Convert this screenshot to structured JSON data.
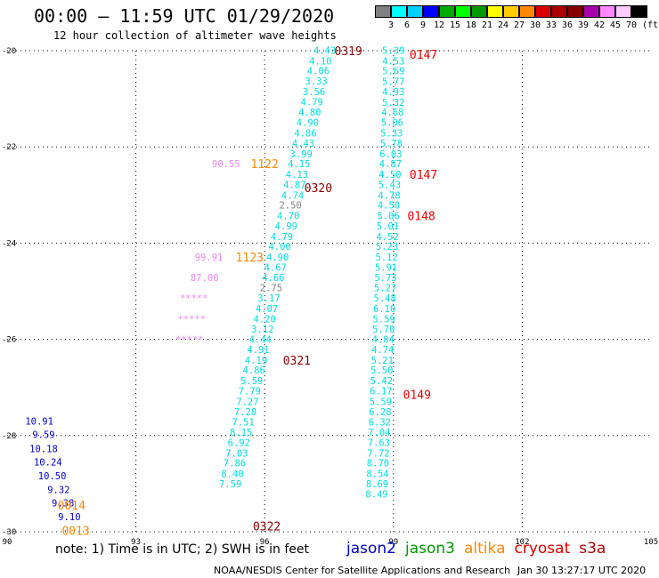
{
  "header": {
    "title": "00:00 – 11:59 UTC 01/29/2020",
    "subtitle": "12 hour collection of altimeter wave heights"
  },
  "colorbar": {
    "unit": "(ft)",
    "colors": [
      "#808080",
      "#00ffff",
      "#00d0ff",
      "#0000ff",
      "#00aa00",
      "#00ff00",
      "#009900",
      "#ffff00",
      "#ffcc00",
      "#ff8800",
      "#dd0000",
      "#aa0000",
      "#880000",
      "#aa00aa",
      "#ff88ff",
      "#ffccff",
      "#000000"
    ],
    "labels": [
      "3",
      "6",
      "9",
      "12",
      "15",
      "18",
      "21",
      "24",
      "27",
      "30",
      "33",
      "36",
      "39",
      "42",
      "45",
      "70"
    ]
  },
  "footer": {
    "note": "note: 1) Time is in UTC; 2) SWH is in feet",
    "credit": "NOAA/NESDIS Center for Satellite Applications and Research",
    "timestamp": "Jan 30 13:27:17 UTC 2020"
  },
  "legend": [
    {
      "name": "jason2",
      "color": "#0000cc"
    },
    {
      "name": "jason3",
      "color": "#009900"
    },
    {
      "name": "altika",
      "color": "#ff8800"
    },
    {
      "name": "cryosat",
      "color": "#dd0000"
    },
    {
      "name": "s3a",
      "color": "#aa0000"
    }
  ],
  "chart_data": {
    "type": "scatter",
    "title": "00:00 – 11:59 UTC 01/29/2020",
    "subtitle": "12 hour collection of altimeter wave heights",
    "xlabel": "",
    "ylabel": "",
    "xlim": [
      90,
      105
    ],
    "ylim": [
      -30,
      -20
    ],
    "xticks": [
      90,
      93,
      96,
      99,
      102,
      105
    ],
    "yticks": [
      -20,
      -22,
      -24,
      -26,
      -28,
      -30
    ],
    "xtick_labels": [
      "90",
      "93",
      "96",
      "99",
      "102",
      "105"
    ],
    "ytick_labels": [
      "-20",
      "-22",
      "-24",
      "-26",
      "-28",
      "-30"
    ],
    "grid": true,
    "colors": {
      "cyan": "#00dddd",
      "blue": "#0000cc",
      "gray": "#808080",
      "pink": "#ee88ee",
      "orange": "#ff8800",
      "red": "#ee0000",
      "darkred": "#880000"
    },
    "points": [
      {
        "x": 97.4,
        "y": -19.99,
        "label": "4.43",
        "color": "cyan"
      },
      {
        "x": 97.3,
        "y": -20.21,
        "label": "4.10",
        "color": "cyan"
      },
      {
        "x": 97.25,
        "y": -20.42,
        "label": "4.06",
        "color": "cyan"
      },
      {
        "x": 97.2,
        "y": -20.63,
        "label": "3.33",
        "color": "cyan"
      },
      {
        "x": 97.15,
        "y": -20.85,
        "label": "3.56",
        "color": "cyan"
      },
      {
        "x": 97.1,
        "y": -21.06,
        "label": "4.79",
        "color": "cyan"
      },
      {
        "x": 97.05,
        "y": -21.28,
        "label": "4.80",
        "color": "cyan"
      },
      {
        "x": 97.0,
        "y": -21.49,
        "label": "4.90",
        "color": "cyan"
      },
      {
        "x": 96.95,
        "y": -21.71,
        "label": "4.86",
        "color": "cyan"
      },
      {
        "x": 96.9,
        "y": -21.92,
        "label": "4.43",
        "color": "cyan"
      },
      {
        "x": 96.85,
        "y": -22.14,
        "label": "3.99",
        "color": "cyan"
      },
      {
        "x": 96.8,
        "y": -22.35,
        "label": "4.15",
        "color": "cyan"
      },
      {
        "x": 96.75,
        "y": -22.57,
        "label": "4.13",
        "color": "cyan"
      },
      {
        "x": 96.7,
        "y": -22.78,
        "label": "4.87",
        "color": "cyan"
      },
      {
        "x": 96.65,
        "y": -23.0,
        "label": "4.74",
        "color": "cyan"
      },
      {
        "x": 96.6,
        "y": -23.21,
        "label": "2.50",
        "color": "gray"
      },
      {
        "x": 96.55,
        "y": -23.43,
        "label": "4.70",
        "color": "cyan"
      },
      {
        "x": 96.5,
        "y": -23.64,
        "label": "4.99",
        "color": "cyan"
      },
      {
        "x": 96.4,
        "y": -23.86,
        "label": "4.79",
        "color": "cyan"
      },
      {
        "x": 96.35,
        "y": -24.07,
        "label": "4.00",
        "color": "cyan"
      },
      {
        "x": 96.3,
        "y": -24.29,
        "label": "4.90",
        "color": "cyan"
      },
      {
        "x": 96.25,
        "y": -24.5,
        "label": "4.67",
        "color": "cyan"
      },
      {
        "x": 96.2,
        "y": -24.71,
        "label": "4.66",
        "color": "cyan"
      },
      {
        "x": 96.15,
        "y": -24.93,
        "label": "2.75",
        "color": "gray"
      },
      {
        "x": 96.1,
        "y": -25.14,
        "label": "3.17",
        "color": "cyan"
      },
      {
        "x": 96.05,
        "y": -25.36,
        "label": "4.07",
        "color": "cyan"
      },
      {
        "x": 96.0,
        "y": -25.57,
        "label": "4.20",
        "color": "cyan"
      },
      {
        "x": 95.95,
        "y": -25.79,
        "label": "3.12",
        "color": "cyan"
      },
      {
        "x": 95.9,
        "y": -26.0,
        "label": "4.44",
        "color": "cyan"
      },
      {
        "x": 95.85,
        "y": -26.21,
        "label": "4.91",
        "color": "cyan"
      },
      {
        "x": 95.8,
        "y": -26.43,
        "label": "4.19",
        "color": "cyan"
      },
      {
        "x": 95.75,
        "y": -26.64,
        "label": "4.86",
        "color": "cyan"
      },
      {
        "x": 95.7,
        "y": -26.86,
        "label": "5.59",
        "color": "cyan"
      },
      {
        "x": 95.65,
        "y": -27.07,
        "label": "7.79",
        "color": "cyan"
      },
      {
        "x": 95.6,
        "y": -27.29,
        "label": "7.27",
        "color": "cyan"
      },
      {
        "x": 95.55,
        "y": -27.5,
        "label": "7.28",
        "color": "cyan"
      },
      {
        "x": 95.5,
        "y": -27.72,
        "label": "7.51",
        "color": "cyan"
      },
      {
        "x": 95.45,
        "y": -27.93,
        "label": "8.15",
        "color": "cyan"
      },
      {
        "x": 95.4,
        "y": -28.14,
        "label": "6.92",
        "color": "cyan"
      },
      {
        "x": 95.35,
        "y": -28.36,
        "label": "7.03",
        "color": "cyan"
      },
      {
        "x": 95.3,
        "y": -28.57,
        "label": "7.86",
        "color": "cyan"
      },
      {
        "x": 95.25,
        "y": -28.79,
        "label": "8.40",
        "color": "cyan"
      },
      {
        "x": 95.2,
        "y": -29.0,
        "label": "7.59",
        "color": "cyan"
      },
      {
        "x": 99.0,
        "y": -19.99,
        "label": "5.39",
        "color": "cyan"
      },
      {
        "x": 99.0,
        "y": -20.21,
        "label": "4.53",
        "color": "cyan"
      },
      {
        "x": 99.0,
        "y": -20.42,
        "label": "5.69",
        "color": "cyan"
      },
      {
        "x": 99.0,
        "y": -20.64,
        "label": "5.77",
        "color": "cyan"
      },
      {
        "x": 99.0,
        "y": -20.85,
        "label": "4.93",
        "color": "cyan"
      },
      {
        "x": 99.0,
        "y": -21.07,
        "label": "5.32",
        "color": "cyan"
      },
      {
        "x": 98.98,
        "y": -21.28,
        "label": "4.68",
        "color": "cyan"
      },
      {
        "x": 98.97,
        "y": -21.49,
        "label": "5.06",
        "color": "cyan"
      },
      {
        "x": 98.96,
        "y": -21.71,
        "label": "5.33",
        "color": "cyan"
      },
      {
        "x": 98.95,
        "y": -21.92,
        "label": "5.78",
        "color": "cyan"
      },
      {
        "x": 98.94,
        "y": -22.14,
        "label": "6.03",
        "color": "cyan"
      },
      {
        "x": 98.93,
        "y": -22.35,
        "label": "4.87",
        "color": "cyan"
      },
      {
        "x": 98.92,
        "y": -22.57,
        "label": "4.50",
        "color": "cyan"
      },
      {
        "x": 98.91,
        "y": -22.78,
        "label": "5.43",
        "color": "cyan"
      },
      {
        "x": 98.9,
        "y": -23.0,
        "label": "4.78",
        "color": "cyan"
      },
      {
        "x": 98.89,
        "y": -23.21,
        "label": "4.50",
        "color": "cyan"
      },
      {
        "x": 98.88,
        "y": -23.43,
        "label": "5.06",
        "color": "cyan"
      },
      {
        "x": 98.87,
        "y": -23.64,
        "label": "5.01",
        "color": "cyan"
      },
      {
        "x": 98.86,
        "y": -23.86,
        "label": "4.52",
        "color": "cyan"
      },
      {
        "x": 98.85,
        "y": -24.07,
        "label": "5.23",
        "color": "cyan"
      },
      {
        "x": 98.84,
        "y": -24.29,
        "label": "5.12",
        "color": "cyan"
      },
      {
        "x": 98.83,
        "y": -24.5,
        "label": "5.91",
        "color": "cyan"
      },
      {
        "x": 98.82,
        "y": -24.71,
        "label": "5.73",
        "color": "cyan"
      },
      {
        "x": 98.81,
        "y": -24.93,
        "label": "5.27",
        "color": "cyan"
      },
      {
        "x": 98.8,
        "y": -25.14,
        "label": "5.48",
        "color": "cyan"
      },
      {
        "x": 98.79,
        "y": -25.36,
        "label": "6.10",
        "color": "cyan"
      },
      {
        "x": 98.78,
        "y": -25.57,
        "label": "5.59",
        "color": "cyan"
      },
      {
        "x": 98.77,
        "y": -25.79,
        "label": "5.70",
        "color": "cyan"
      },
      {
        "x": 98.76,
        "y": -26.0,
        "label": "4.84",
        "color": "cyan"
      },
      {
        "x": 98.75,
        "y": -26.21,
        "label": "4.74",
        "color": "cyan"
      },
      {
        "x": 98.74,
        "y": -26.43,
        "label": "5.21",
        "color": "cyan"
      },
      {
        "x": 98.73,
        "y": -26.64,
        "label": "5.50",
        "color": "cyan"
      },
      {
        "x": 98.72,
        "y": -26.86,
        "label": "5.42",
        "color": "cyan"
      },
      {
        "x": 98.71,
        "y": -27.07,
        "label": "6.17",
        "color": "cyan"
      },
      {
        "x": 98.7,
        "y": -27.29,
        "label": "5.59",
        "color": "cyan"
      },
      {
        "x": 98.69,
        "y": -27.5,
        "label": "6.28",
        "color": "cyan"
      },
      {
        "x": 98.68,
        "y": -27.72,
        "label": "6.32",
        "color": "cyan"
      },
      {
        "x": 98.67,
        "y": -27.93,
        "label": "7.04",
        "color": "cyan"
      },
      {
        "x": 98.66,
        "y": -28.14,
        "label": "7.63",
        "color": "cyan"
      },
      {
        "x": 98.65,
        "y": -28.36,
        "label": "7.72",
        "color": "cyan"
      },
      {
        "x": 98.64,
        "y": -28.57,
        "label": "8.70",
        "color": "cyan"
      },
      {
        "x": 98.63,
        "y": -28.79,
        "label": "8.54",
        "color": "cyan"
      },
      {
        "x": 98.62,
        "y": -29.0,
        "label": "8.69",
        "color": "cyan"
      },
      {
        "x": 98.61,
        "y": -29.21,
        "label": "8.49",
        "color": "cyan"
      },
      {
        "x": 95.1,
        "y": -22.35,
        "label": "90.55",
        "color": "pink"
      },
      {
        "x": 94.7,
        "y": -24.29,
        "label": "99.91",
        "color": "pink"
      },
      {
        "x": 94.6,
        "y": -24.71,
        "label": "87.00",
        "color": "pink"
      },
      {
        "x": 94.35,
        "y": -25.14,
        "label": "*****",
        "color": "pink"
      },
      {
        "x": 94.3,
        "y": -25.57,
        "label": "*****",
        "color": "pink"
      },
      {
        "x": 94.25,
        "y": -26.0,
        "label": "*****",
        "color": "pink"
      },
      {
        "x": 90.75,
        "y": -27.7,
        "label": "10.91",
        "color": "blue"
      },
      {
        "x": 90.85,
        "y": -27.98,
        "label": "9.59",
        "color": "blue"
      },
      {
        "x": 90.85,
        "y": -28.27,
        "label": "10.18",
        "color": "blue"
      },
      {
        "x": 90.95,
        "y": -28.55,
        "label": "10.24",
        "color": "blue"
      },
      {
        "x": 91.05,
        "y": -28.84,
        "label": "10.50",
        "color": "blue"
      },
      {
        "x": 91.2,
        "y": -29.12,
        "label": "9.32",
        "color": "blue"
      },
      {
        "x": 91.3,
        "y": -29.4,
        "label": "9.38",
        "color": "blue"
      },
      {
        "x": 91.45,
        "y": -29.69,
        "label": "9.10",
        "color": "blue"
      }
    ],
    "time_labels": [
      {
        "x": 97.95,
        "y": -20.0,
        "label": "0319",
        "color": "darkred"
      },
      {
        "x": 99.7,
        "y": -20.07,
        "label": "0147",
        "color": "red"
      },
      {
        "x": 99.7,
        "y": -22.57,
        "label": "0147",
        "color": "red"
      },
      {
        "x": 97.25,
        "y": -22.85,
        "label": "0320",
        "color": "darkred"
      },
      {
        "x": 99.65,
        "y": -23.43,
        "label": "0148",
        "color": "red"
      },
      {
        "x": 96.0,
        "y": -22.35,
        "label": "1122",
        "color": "orange"
      },
      {
        "x": 95.65,
        "y": -24.29,
        "label": "1123",
        "color": "orange"
      },
      {
        "x": 96.75,
        "y": -26.43,
        "label": "0321",
        "color": "darkred"
      },
      {
        "x": 99.55,
        "y": -27.14,
        "label": "0149",
        "color": "red"
      },
      {
        "x": 91.5,
        "y": -29.45,
        "label": "0014",
        "color": "orange"
      },
      {
        "x": 91.6,
        "y": -29.97,
        "label": "0013",
        "color": "orange"
      },
      {
        "x": 96.05,
        "y": -29.88,
        "label": "0322",
        "color": "darkred"
      }
    ]
  }
}
